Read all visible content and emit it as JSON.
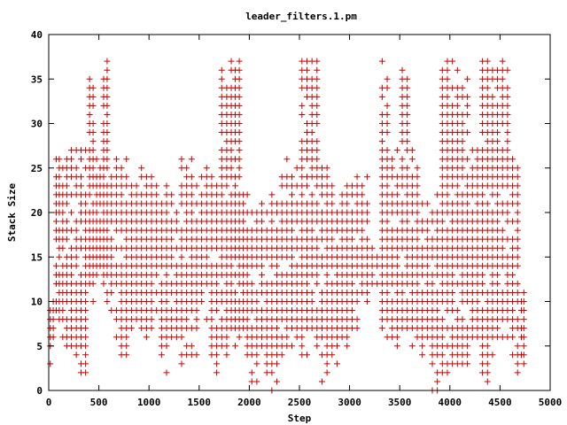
{
  "chart_data": {
    "type": "scatter",
    "title": "leader_filters.1.pm",
    "xlabel": "Step",
    "ylabel": "Stack Size",
    "xlim": [
      0,
      5000
    ],
    "ylim": [
      0,
      40
    ],
    "x_ticks": [
      0,
      500,
      1000,
      1500,
      2000,
      2500,
      3000,
      3500,
      4000,
      4500,
      5000
    ],
    "y_ticks": [
      0,
      5,
      10,
      15,
      20,
      25,
      30,
      35,
      40
    ],
    "grid": false,
    "legend": "none",
    "marker": "plus",
    "color": "#cc0000",
    "segments": [
      [
        0,
        60,
        3,
        12
      ],
      [
        60,
        120,
        7,
        27
      ],
      [
        120,
        200,
        5,
        26
      ],
      [
        200,
        300,
        4,
        27
      ],
      [
        300,
        390,
        2,
        27
      ],
      [
        390,
        460,
        10,
        37
      ],
      [
        460,
        530,
        12,
        27
      ],
      [
        530,
        600,
        10,
        37
      ],
      [
        600,
        700,
        6,
        26
      ],
      [
        700,
        800,
        4,
        26
      ],
      [
        800,
        900,
        6,
        26
      ],
      [
        900,
        1000,
        5,
        25
      ],
      [
        1000,
        1100,
        7,
        25
      ],
      [
        1100,
        1200,
        2,
        24
      ],
      [
        1200,
        1300,
        5,
        22
      ],
      [
        1300,
        1400,
        3,
        26
      ],
      [
        1400,
        1500,
        4,
        26
      ],
      [
        1500,
        1600,
        7,
        25
      ],
      [
        1600,
        1700,
        2,
        24
      ],
      [
        1700,
        1800,
        4,
        37
      ],
      [
        1800,
        1920,
        5,
        37
      ],
      [
        1920,
        2000,
        3,
        22
      ],
      [
        2000,
        2100,
        1,
        22
      ],
      [
        2100,
        2200,
        2,
        21
      ],
      [
        2200,
        2300,
        0,
        22
      ],
      [
        2300,
        2400,
        3,
        27
      ],
      [
        2400,
        2500,
        5,
        25
      ],
      [
        2500,
        2600,
        4,
        37
      ],
      [
        2600,
        2700,
        5,
        37
      ],
      [
        2700,
        2800,
        1,
        25
      ],
      [
        2800,
        2900,
        3,
        25
      ],
      [
        2900,
        3000,
        4,
        24
      ],
      [
        3000,
        3100,
        6,
        25
      ],
      [
        3100,
        3200,
        10,
        25
      ],
      [
        3200,
        3300,
        12,
        16
      ],
      [
        3300,
        3400,
        6,
        37
      ],
      [
        3400,
        3500,
        4,
        27
      ],
      [
        3500,
        3600,
        6,
        37
      ],
      [
        3600,
        3700,
        5,
        27
      ],
      [
        3700,
        3800,
        3,
        22
      ],
      [
        3800,
        3900,
        0,
        22
      ],
      [
        3900,
        4000,
        2,
        37
      ],
      [
        4000,
        4100,
        3,
        37
      ],
      [
        4100,
        4200,
        2,
        37
      ],
      [
        4200,
        4300,
        5,
        27
      ],
      [
        4300,
        4400,
        1,
        37
      ],
      [
        4400,
        4500,
        4,
        37
      ],
      [
        4500,
        4600,
        5,
        37
      ],
      [
        4600,
        4700,
        2,
        27
      ],
      [
        4700,
        4750,
        3,
        11
      ]
    ]
  }
}
